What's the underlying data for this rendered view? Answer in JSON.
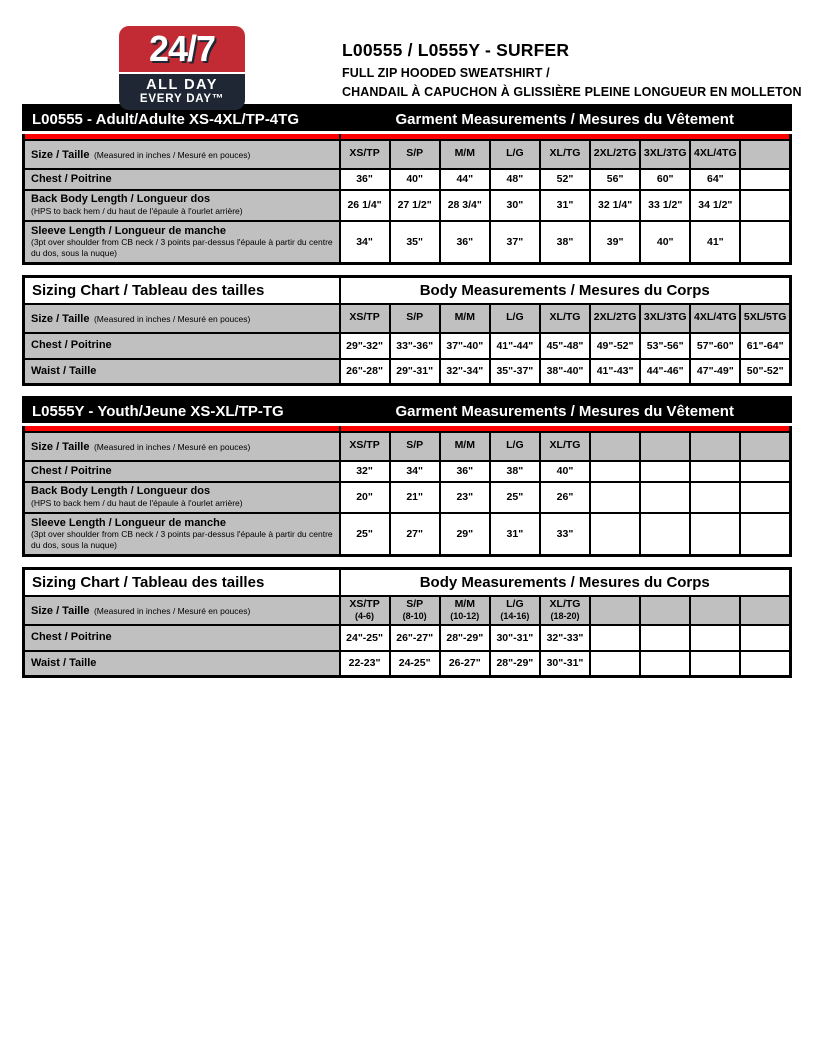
{
  "header": {
    "logo": {
      "badge_top": "24/7",
      "badge_line1": "ALL DAY",
      "badge_line2": "EVERY DAY™"
    },
    "product_code_title": "L00555 / L0555Y - SURFER",
    "product_name_en": "FULL ZIP HOODED SWEATSHIRT /",
    "product_name_fr": "CHANDAIL À CAPUCHON À GLISSIÈRE PLEINE LONGUEUR EN MOLLETON"
  },
  "colors": {
    "accent_red": "#ff0000",
    "logo_red": "#c22b33",
    "logo_navy": "#1e2733",
    "header_black": "#000000",
    "cell_grey": "#c0c0c0"
  },
  "tables": [
    {
      "kind": "garment",
      "header_left": "L00555 - Adult/Adulte XS-4XL/TP-4TG",
      "header_right": "Garment Measurements / Mesures du Vêtement",
      "size_label": "Size / Taille",
      "size_note": "(Measured in inches / Mesuré en pouces)",
      "columns": [
        {
          "label": "XS/TP",
          "sub": ""
        },
        {
          "label": "S/P",
          "sub": ""
        },
        {
          "label": "M/M",
          "sub": ""
        },
        {
          "label": "L/G",
          "sub": ""
        },
        {
          "label": "XL/TG",
          "sub": ""
        },
        {
          "label": "2XL/2TG",
          "sub": ""
        },
        {
          "label": "3XL/3TG",
          "sub": ""
        },
        {
          "label": "4XL/4TG",
          "sub": ""
        },
        {
          "label": "",
          "sub": ""
        }
      ],
      "rows": [
        {
          "label": "Chest / Poitrine",
          "note": "",
          "values": [
            "36\"",
            "40\"",
            "44\"",
            "48\"",
            "52\"",
            "56\"",
            "60\"",
            "64\"",
            ""
          ]
        },
        {
          "label": "Back Body Length / Longueur dos",
          "note": "(HPS to back hem  / du haut de l'épaule à l'ourlet arrière)",
          "values": [
            "26 1/4\"",
            "27 1/2\"",
            "28 3/4\"",
            "30\"",
            "31\"",
            "32 1/4\"",
            "33 1/2\"",
            "34 1/2\"",
            ""
          ]
        },
        {
          "label": "Sleeve Length / Longueur de manche",
          "note": "(3pt over shoulder from CB neck / 3 points par-dessus l'épaule à partir du centre du dos, sous la nuque)",
          "values": [
            "34\"",
            "35\"",
            "36\"",
            "37\"",
            "38\"",
            "39\"",
            "40\"",
            "41\"",
            ""
          ]
        }
      ]
    },
    {
      "kind": "body",
      "header_left": "Sizing Chart / Tableau des tailles",
      "header_right": "Body Measurements / Mesures du Corps",
      "size_label": "Size / Taille",
      "size_note": "(Measured in inches / Mesuré en pouces)",
      "columns": [
        {
          "label": "XS/TP",
          "sub": ""
        },
        {
          "label": "S/P",
          "sub": ""
        },
        {
          "label": "M/M",
          "sub": ""
        },
        {
          "label": "L/G",
          "sub": ""
        },
        {
          "label": "XL/TG",
          "sub": ""
        },
        {
          "label": "2XL/2TG",
          "sub": ""
        },
        {
          "label": "3XL/3TG",
          "sub": ""
        },
        {
          "label": "4XL/4TG",
          "sub": ""
        },
        {
          "label": "5XL/5TG",
          "sub": ""
        }
      ],
      "rows": [
        {
          "label": "Chest / Poitrine",
          "note": "",
          "values": [
            "29\"-32\"",
            "33\"-36\"",
            "37\"-40\"",
            "41\"-44\"",
            "45\"-48\"",
            "49\"-52\"",
            "53\"-56\"",
            "57\"-60\"",
            "61\"-64\""
          ]
        },
        {
          "label": "Waist / Taille",
          "note": "",
          "values": [
            "26\"-28\"",
            "29\"-31\"",
            "32\"-34\"",
            "35\"-37\"",
            "38\"-40\"",
            "41\"-43\"",
            "44\"-46\"",
            "47\"-49\"",
            "50\"-52\""
          ]
        }
      ]
    },
    {
      "kind": "garment",
      "header_left": "L0555Y - Youth/Jeune XS-XL/TP-TG",
      "header_right": "Garment Measurements / Mesures du Vêtement",
      "size_label": "Size / Taille",
      "size_note": "(Measured in inches / Mesuré en pouces)",
      "columns": [
        {
          "label": "XS/TP",
          "sub": ""
        },
        {
          "label": "S/P",
          "sub": ""
        },
        {
          "label": "M/M",
          "sub": ""
        },
        {
          "label": "L/G",
          "sub": ""
        },
        {
          "label": "XL/TG",
          "sub": ""
        },
        {
          "label": "",
          "sub": ""
        },
        {
          "label": "",
          "sub": ""
        },
        {
          "label": "",
          "sub": ""
        },
        {
          "label": "",
          "sub": ""
        }
      ],
      "rows": [
        {
          "label": "Chest / Poitrine",
          "note": "",
          "values": [
            "32\"",
            "34\"",
            "36\"",
            "38\"",
            "40\"",
            "",
            "",
            "",
            ""
          ]
        },
        {
          "label": "Back Body Length / Longueur dos",
          "note": "(HPS to back hem  / du haut de l'épaule à l'ourlet arrière)",
          "values": [
            "20\"",
            "21\"",
            "23\"",
            "25\"",
            "26\"",
            "",
            "",
            "",
            ""
          ]
        },
        {
          "label": "Sleeve Length / Longueur de manche",
          "note": "(3pt over shoulder from CB neck / 3 points par-dessus l'épaule à partir du centre du dos, sous la nuque)",
          "values": [
            "25\"",
            "27\"",
            "29\"",
            "31\"",
            "33\"",
            "",
            "",
            "",
            ""
          ]
        }
      ]
    },
    {
      "kind": "body",
      "header_left": "Sizing Chart / Tableau des tailles",
      "header_right": "Body Measurements / Mesures du Corps",
      "size_label": "Size / Taille",
      "size_note": "(Measured in inches / Mesuré en pouces)",
      "columns": [
        {
          "label": "XS/TP",
          "sub": "(4-6)"
        },
        {
          "label": "S/P",
          "sub": "(8-10)"
        },
        {
          "label": "M/M",
          "sub": "(10-12)"
        },
        {
          "label": "L/G",
          "sub": "(14-16)"
        },
        {
          "label": "XL/TG",
          "sub": "(18-20)"
        },
        {
          "label": "",
          "sub": ""
        },
        {
          "label": "",
          "sub": ""
        },
        {
          "label": "",
          "sub": ""
        },
        {
          "label": "",
          "sub": ""
        }
      ],
      "rows": [
        {
          "label": "Chest / Poitrine",
          "note": "",
          "values": [
            "24\"-25\"",
            "26\"-27\"",
            "28\"-29\"",
            "30\"-31\"",
            "32\"-33\"",
            "",
            "",
            "",
            ""
          ]
        },
        {
          "label": "Waist / Taille",
          "note": "",
          "values": [
            "22-23\"",
            "24-25\"",
            "26-27\"",
            "28\"-29\"",
            "30\"-31\"",
            "",
            "",
            "",
            ""
          ]
        }
      ]
    }
  ]
}
